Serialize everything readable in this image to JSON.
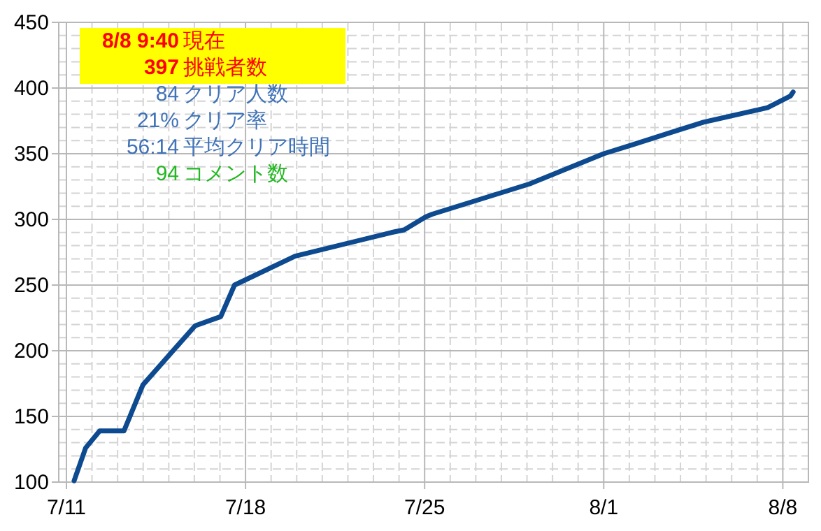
{
  "chart_data": {
    "type": "line",
    "x": [
      "--07-11T07:12",
      "--07-11T18:00",
      "--07-12T07:12",
      "--07-13T06:00",
      "--07-13T23:45",
      "--07-15T00:45",
      "--07-16T00:45",
      "--07-17T00:45",
      "--07-17T13:40",
      "--07-19T22:30",
      "--07-23T16:48",
      "--07-24T04:48",
      "--07-25T01:12",
      "--07-25T07:12",
      "--07-29T02:24",
      "--08-01T00:00",
      "--08-02T03:36",
      "--08-03T14:24",
      "--08-04T21:36",
      "--08-07T09:36",
      "--08-08T07:12",
      "--08-08T09:40"
    ],
    "series": [
      {
        "color": "#0d4a8f",
        "values": [
          101,
          126,
          139,
          139,
          174,
          197,
          219,
          226,
          250,
          272,
          290,
          292,
          302,
          304,
          327,
          350,
          357,
          366,
          374,
          385,
          394,
          397
        ]
      }
    ],
    "xlim": [
      "--07-10T16:48",
      "--08-09T00:00"
    ],
    "xticks": [
      {
        "value": "--07-11",
        "label": "7/11"
      },
      {
        "value": "--07-18",
        "label": "7/18"
      },
      {
        "value": "--07-25",
        "label": "7/25"
      },
      {
        "value": "--08-01",
        "label": "8/1"
      },
      {
        "value": "--08-08",
        "label": "8/8"
      }
    ],
    "ylim": [
      100,
      450
    ],
    "yticks": [
      100,
      150,
      200,
      250,
      300,
      350,
      400,
      450
    ],
    "grid": true,
    "marker": "none",
    "line_style": "solid",
    "annotations": [
      "8/8 9:40 現在",
      "397 挑戦者数",
      "84 クリア人数",
      "21% クリア率",
      "56:14 平均クリア時間",
      "94 コメント数"
    ]
  }
}
